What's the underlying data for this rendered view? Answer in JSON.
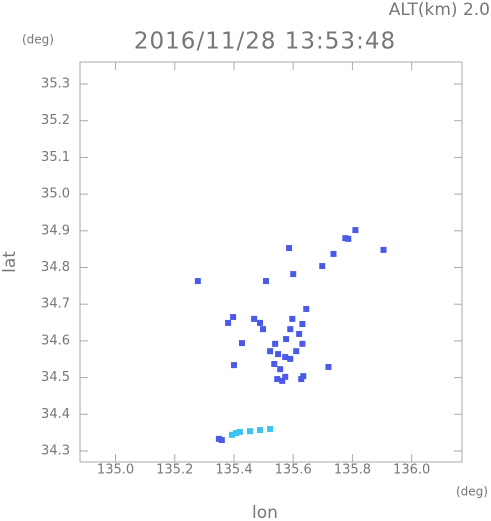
{
  "chart_data": {
    "type": "scatter",
    "title": "2016/11/28 13:53:48",
    "subtitle": "ALT(km)  2.0",
    "y_unit": "(deg)",
    "x_unit": "(deg)",
    "x_label": "lon",
    "y_label": "lat",
    "xlim": [
      134.88,
      136.17
    ],
    "ylim": [
      34.27,
      35.36
    ],
    "xticks": [
      {
        "value": 135,
        "label": "135.0"
      },
      135.2,
      135.4,
      135.6,
      135.8,
      {
        "value": 136,
        "label": "136.0"
      }
    ],
    "yticks": [
      34.3,
      34.4,
      34.5,
      34.6,
      34.7,
      34.8,
      34.9,
      {
        "value": 35,
        "label": "35.0"
      },
      35.1,
      35.2,
      35.3
    ],
    "series": [
      {
        "color": "#4a5ae6",
        "x": [
          135.278,
          135.586,
          135.6,
          135.698,
          135.736,
          135.776,
          135.786,
          135.81,
          135.905,
          135.508,
          135.397,
          135.38,
          135.468,
          135.488,
          135.498,
          135.427,
          135.4,
          135.644,
          135.631,
          135.62,
          135.59,
          135.576,
          135.631,
          135.61,
          135.539,
          135.549,
          135.573,
          135.556,
          135.546,
          135.573,
          135.536,
          135.59,
          135.627,
          135.634,
          135.563,
          135.522,
          135.597,
          135.719,
          135.349,
          135.359
        ],
        "y": [
          34.763,
          34.853,
          34.782,
          34.804,
          34.837,
          34.88,
          34.878,
          34.902,
          34.848,
          34.763,
          34.665,
          34.649,
          34.66,
          34.649,
          34.632,
          34.594,
          34.534,
          34.687,
          34.646,
          34.619,
          34.632,
          34.605,
          34.592,
          34.572,
          34.592,
          34.564,
          34.556,
          34.523,
          34.496,
          34.502,
          34.537,
          34.551,
          34.496,
          34.504,
          34.491,
          34.572,
          34.66,
          34.529,
          34.333,
          34.33
        ]
      },
      {
        "color": "#3cc4ee",
        "x": [
          135.393,
          135.42,
          135.454,
          135.488,
          135.522,
          135.407
        ],
        "y": [
          34.344,
          34.352,
          34.354,
          34.357,
          34.36,
          34.349
        ]
      }
    ]
  }
}
